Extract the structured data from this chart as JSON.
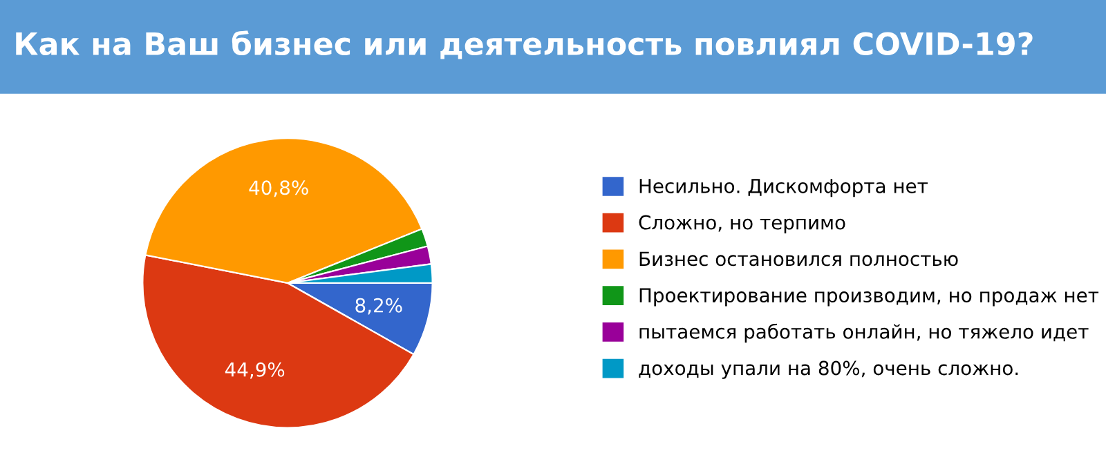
{
  "chart_data": {
    "type": "pie",
    "title": "Как на Ваш бизнес или деятельность повлиял COVID-19?",
    "categories": [
      "Несильно. Дискомфорта нет",
      "Сложно, но терпимо",
      "Бизнес остановился полностью",
      "Проектирование производим, но продаж нет",
      "пытаемся работать онлайн, но тяжело идет",
      "доходы упали на 80%, очень сложно."
    ],
    "values": [
      8.2,
      44.9,
      40.8,
      2.0,
      2.0,
      2.1
    ],
    "colors": [
      "#3366cc",
      "#dc3912",
      "#ff9900",
      "#109618",
      "#990099",
      "#0099c6"
    ],
    "value_labels": [
      "8,2%",
      "44,9%",
      "40,8%",
      null,
      null,
      null
    ],
    "legend": "right"
  }
}
